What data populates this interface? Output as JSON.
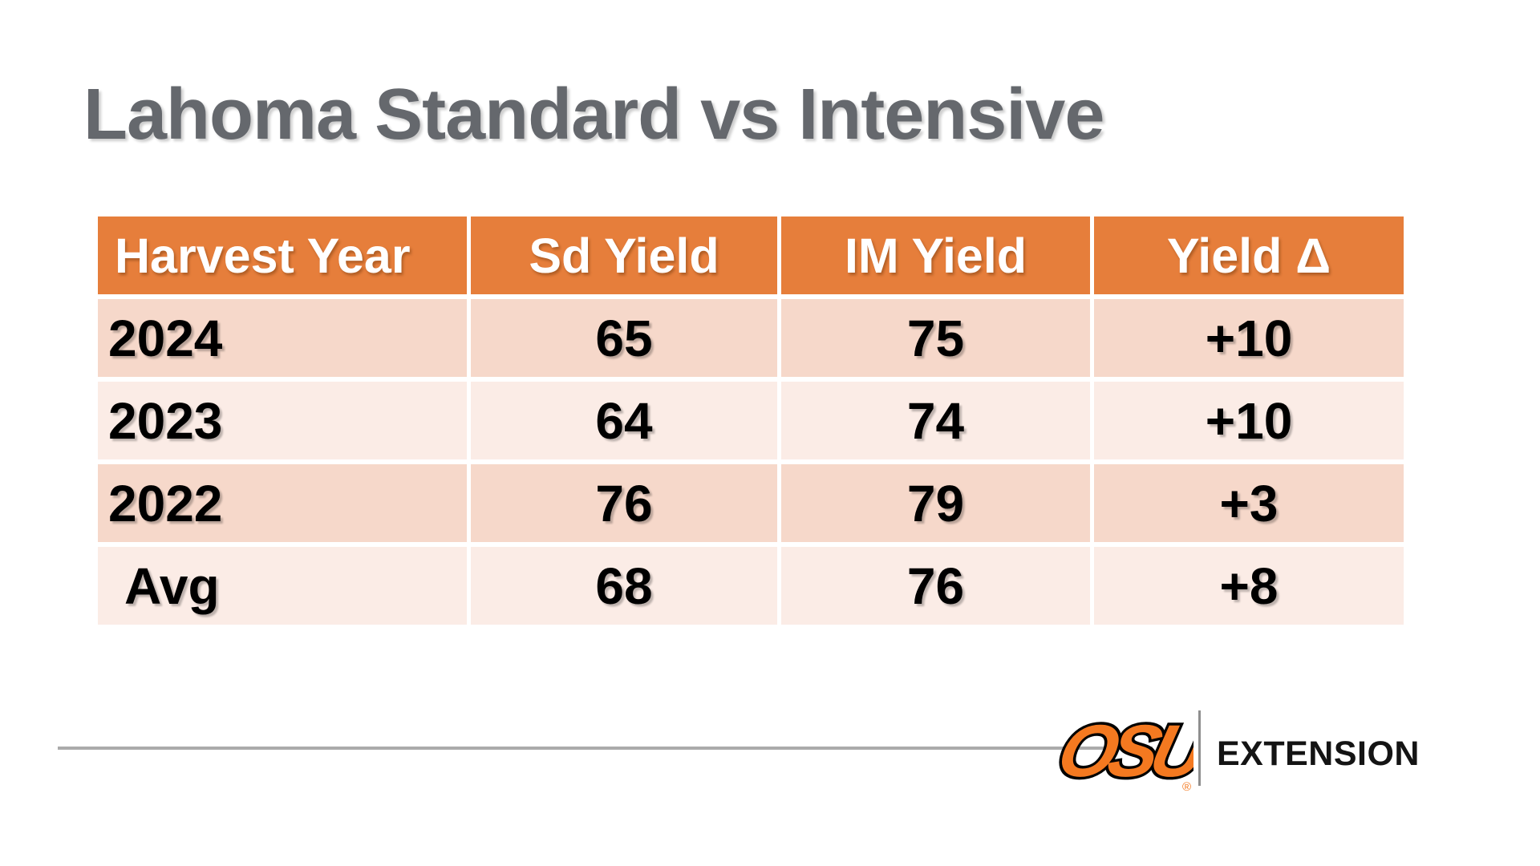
{
  "title": "Lahoma Standard vs Intensive",
  "table": {
    "columns": [
      "Harvest Year",
      "Sd Yield",
      "IM Yield",
      "Yield Δ"
    ],
    "rows": [
      {
        "year": "2024",
        "sd_yield": "65",
        "im_yield": "75",
        "yield_delta": "+10"
      },
      {
        "year": "2023",
        "sd_yield": "64",
        "im_yield": "74",
        "yield_delta": "+10"
      },
      {
        "year": "2022",
        "sd_yield": "76",
        "im_yield": "79",
        "yield_delta": "+3"
      },
      {
        "year": "Avg",
        "sd_yield": "68",
        "im_yield": "76",
        "yield_delta": "+8"
      }
    ]
  },
  "footer": {
    "logo_text": "OSU",
    "registered_mark": "®",
    "brand_label": "EXTENSION"
  },
  "colors": {
    "header_orange": "#E67E3B",
    "row_pink_dark": "#F6D8CA",
    "row_pink_light": "#FBECE6",
    "title_gray": "#65686D",
    "logo_orange": "#F47920",
    "rule_gray": "#ABABAB",
    "text_black": "#000000",
    "header_text_white": "#FFFFFF"
  },
  "chart_data": {
    "type": "table",
    "title": "Lahoma Standard vs Intensive",
    "columns": [
      "Harvest Year",
      "Sd Yield",
      "IM Yield",
      "Yield Δ"
    ],
    "categories": [
      "2024",
      "2023",
      "2022",
      "Avg"
    ],
    "series": [
      {
        "name": "Sd Yield",
        "values": [
          65,
          64,
          76,
          68
        ]
      },
      {
        "name": "IM Yield",
        "values": [
          75,
          74,
          79,
          76
        ]
      },
      {
        "name": "Yield Δ",
        "values": [
          10,
          10,
          3,
          8
        ]
      }
    ],
    "layout_hints": {
      "header_fill": "#E67E3B",
      "banded_rows": true,
      "legend_position": "none"
    }
  }
}
